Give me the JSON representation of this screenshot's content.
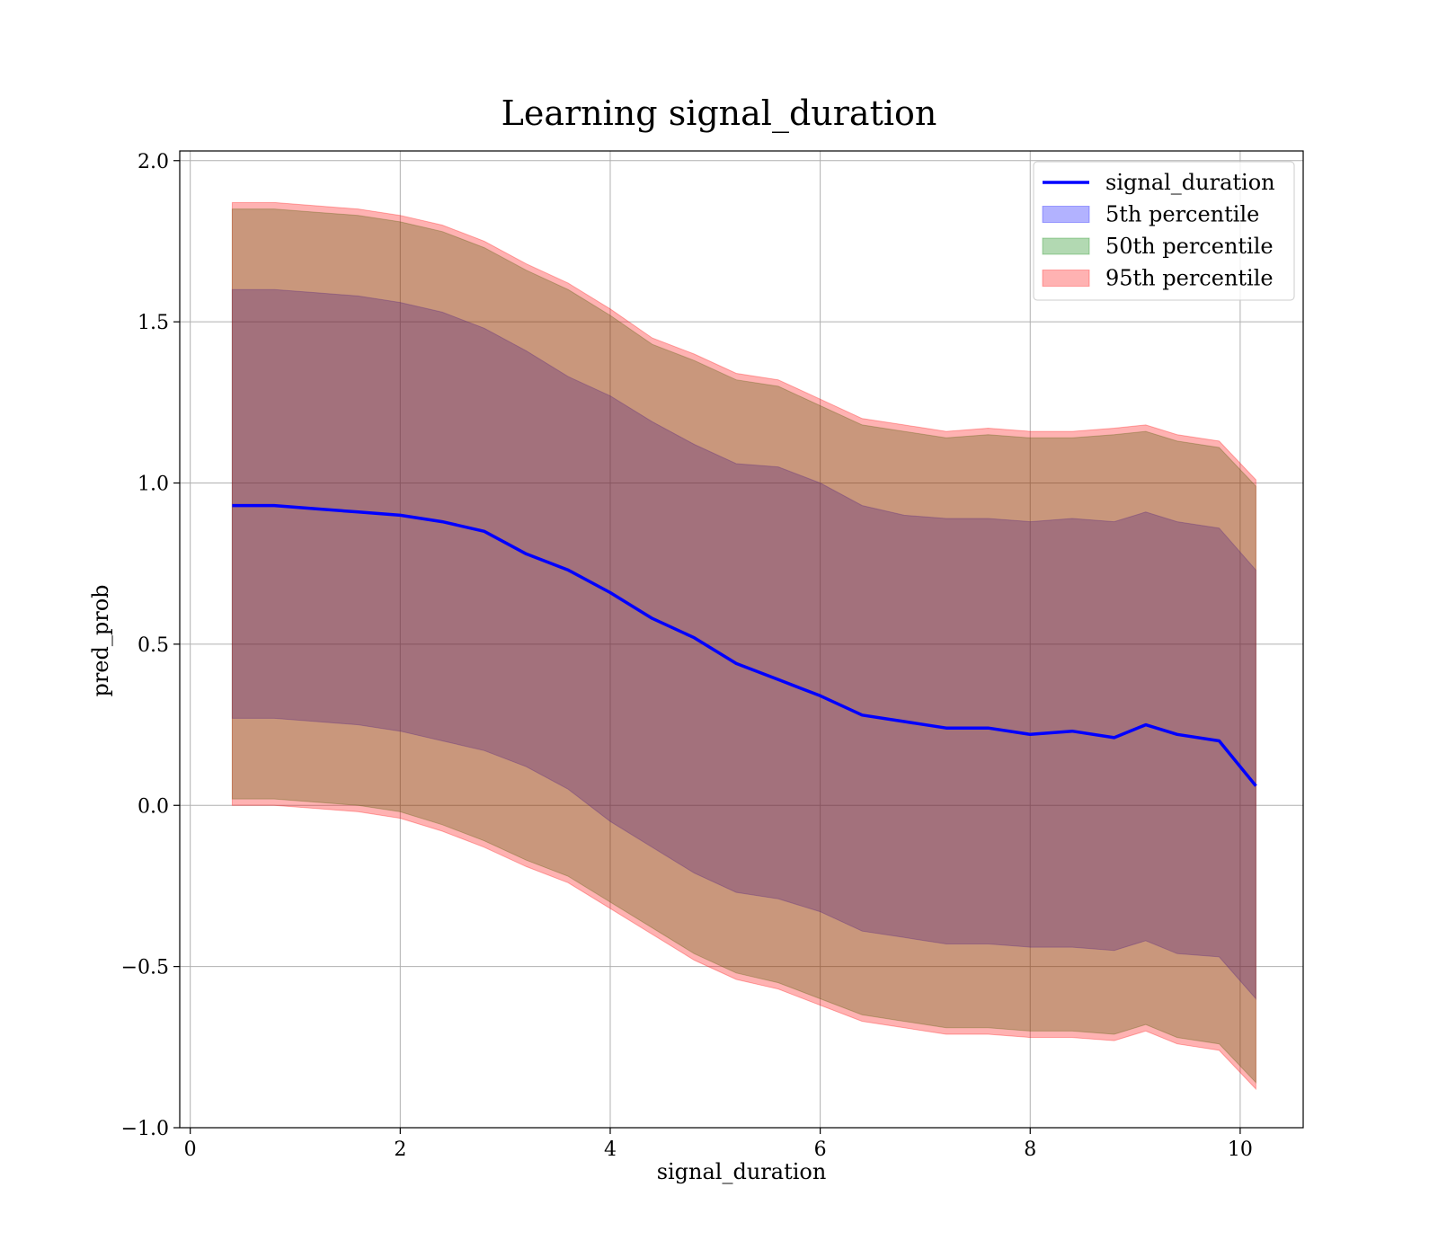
{
  "chart_data": {
    "type": "line",
    "title": "Learning signal_duration",
    "xlabel": "signal_duration",
    "ylabel": "pred_prob",
    "xlim": [
      -0.1,
      10.6
    ],
    "ylim": [
      -1.0,
      2.03
    ],
    "xticks": [
      0,
      2,
      4,
      6,
      8,
      10
    ],
    "xtick_labels": [
      "0",
      "2",
      "4",
      "6",
      "8",
      "10"
    ],
    "yticks": [
      -1.0,
      -0.5,
      0.0,
      0.5,
      1.0,
      1.5,
      2.0
    ],
    "ytick_labels": [
      "−1.0",
      "−0.5",
      "0.0",
      "0.5",
      "1.0",
      "1.5",
      "2.0"
    ],
    "grid": true,
    "legend_position": "top-right",
    "x": [
      0.4,
      0.8,
      1.2,
      1.6,
      2.0,
      2.4,
      2.8,
      3.2,
      3.6,
      4.0,
      4.4,
      4.8,
      5.2,
      5.6,
      6.0,
      6.4,
      6.8,
      7.2,
      7.6,
      8.0,
      8.4,
      8.8,
      9.1,
      9.4,
      9.8,
      10.15
    ],
    "series": [
      {
        "name": "signal_duration",
        "kind": "line",
        "color": "#0000ff",
        "values": [
          0.93,
          0.93,
          0.92,
          0.91,
          0.9,
          0.88,
          0.85,
          0.78,
          0.73,
          0.66,
          0.58,
          0.52,
          0.44,
          0.39,
          0.34,
          0.28,
          0.26,
          0.24,
          0.24,
          0.22,
          0.23,
          0.21,
          0.25,
          0.22,
          0.2,
          0.06
        ]
      },
      {
        "name": "5th percentile",
        "kind": "band",
        "color": "#0000ff",
        "lower": [
          0.27,
          0.27,
          0.26,
          0.25,
          0.23,
          0.2,
          0.17,
          0.12,
          0.05,
          -0.05,
          -0.13,
          -0.21,
          -0.27,
          -0.29,
          -0.33,
          -0.39,
          -0.41,
          -0.43,
          -0.43,
          -0.44,
          -0.44,
          -0.45,
          -0.42,
          -0.46,
          -0.47,
          -0.6
        ],
        "upper": [
          1.6,
          1.6,
          1.59,
          1.58,
          1.56,
          1.53,
          1.48,
          1.41,
          1.33,
          1.27,
          1.19,
          1.12,
          1.06,
          1.05,
          1.0,
          0.93,
          0.9,
          0.89,
          0.89,
          0.88,
          0.89,
          0.88,
          0.91,
          0.88,
          0.86,
          0.73
        ]
      },
      {
        "name": "50th percentile",
        "kind": "band",
        "color": "#008000",
        "lower": [
          0.02,
          0.02,
          0.01,
          0.0,
          -0.02,
          -0.06,
          -0.11,
          -0.17,
          -0.22,
          -0.3,
          -0.38,
          -0.46,
          -0.52,
          -0.55,
          -0.6,
          -0.65,
          -0.67,
          -0.69,
          -0.69,
          -0.7,
          -0.7,
          -0.71,
          -0.68,
          -0.72,
          -0.74,
          -0.86
        ],
        "upper": [
          1.85,
          1.85,
          1.84,
          1.83,
          1.81,
          1.78,
          1.73,
          1.66,
          1.6,
          1.52,
          1.43,
          1.38,
          1.32,
          1.3,
          1.24,
          1.18,
          1.16,
          1.14,
          1.15,
          1.14,
          1.14,
          1.15,
          1.16,
          1.13,
          1.11,
          0.99
        ]
      },
      {
        "name": "95th percentile",
        "kind": "band",
        "color": "#ff0000",
        "lower": [
          0.0,
          0.0,
          -0.01,
          -0.02,
          -0.04,
          -0.08,
          -0.13,
          -0.19,
          -0.24,
          -0.32,
          -0.4,
          -0.48,
          -0.54,
          -0.57,
          -0.62,
          -0.67,
          -0.69,
          -0.71,
          -0.71,
          -0.72,
          -0.72,
          -0.73,
          -0.7,
          -0.74,
          -0.76,
          -0.88
        ],
        "upper": [
          1.87,
          1.87,
          1.86,
          1.85,
          1.83,
          1.8,
          1.75,
          1.68,
          1.62,
          1.54,
          1.45,
          1.4,
          1.34,
          1.32,
          1.26,
          1.2,
          1.18,
          1.16,
          1.17,
          1.16,
          1.16,
          1.17,
          1.18,
          1.15,
          1.13,
          1.01
        ]
      }
    ]
  }
}
